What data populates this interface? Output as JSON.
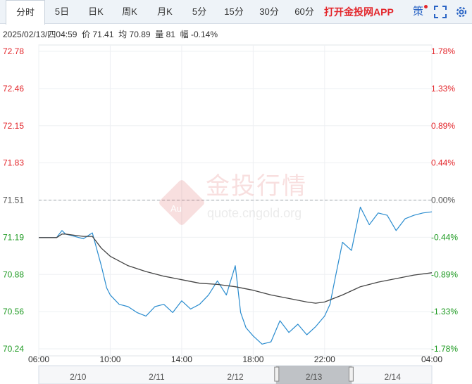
{
  "tabs": [
    {
      "label": "分时",
      "active": true
    },
    {
      "label": "5日"
    },
    {
      "label": "日K"
    },
    {
      "label": "周K"
    },
    {
      "label": "月K"
    },
    {
      "label": "5分"
    },
    {
      "label": "15分"
    },
    {
      "label": "30分"
    },
    {
      "label": "60分"
    }
  ],
  "promo_label": "打开金投网APP",
  "strategy_label": "策",
  "info": {
    "datetime": "2025/02/13/四04:59",
    "price_label": "价",
    "price": "71.41",
    "avg_label": "均",
    "avg": "70.89",
    "volume_label": "量",
    "volume": "81",
    "change_label": "幅",
    "change": "-0.14%"
  },
  "watermark": {
    "name": "金投行情",
    "url": "quote.cngold.org",
    "logo": "Au"
  },
  "colors": {
    "price_line": "#2a8ccf",
    "avg_line": "#444444",
    "up": "#e3262b",
    "down": "#1e9a22",
    "neutral": "#555555"
  },
  "chart_data": {
    "type": "line",
    "ylim": [
      70.24,
      72.78
    ],
    "y_ticks": [
      "72.78",
      "72.46",
      "72.15",
      "71.83",
      "71.51",
      "71.19",
      "70.88",
      "70.56",
      "70.24"
    ],
    "pct_ticks": [
      "1.78%",
      "1.33%",
      "0.89%",
      "0.44%",
      "0.00%",
      "-0.44%",
      "-0.89%",
      "-1.33%",
      "-1.78%"
    ],
    "ref_value": 71.51,
    "x_ticks": [
      "06:00",
      "10:00",
      "14:00",
      "18:00",
      "22:00",
      "04:00"
    ],
    "x_tick_hours": [
      0,
      4,
      8,
      12,
      16,
      22
    ],
    "x_range_hours": [
      0,
      22
    ],
    "series": [
      {
        "key": "price",
        "hours": [
          0,
          0.5,
          1,
          1.3,
          1.5,
          2,
          2.5,
          3,
          3.5,
          3.8,
          4,
          4.5,
          5,
          5.5,
          6,
          6.5,
          7,
          7.5,
          8,
          8.5,
          9,
          9.5,
          10,
          10.5,
          11,
          11.3,
          11.6,
          12,
          12.5,
          13,
          13.5,
          14,
          14.5,
          15,
          15.5,
          16,
          16.3,
          16.6,
          17,
          17.5,
          18,
          18.5,
          19,
          19.5,
          20,
          20.5,
          21,
          21.5,
          22
        ],
        "values": [
          71.19,
          71.19,
          71.19,
          71.25,
          71.22,
          71.2,
          71.18,
          71.23,
          70.95,
          70.76,
          70.7,
          70.62,
          70.6,
          70.55,
          70.52,
          70.6,
          70.62,
          70.55,
          70.65,
          70.58,
          70.62,
          70.7,
          70.82,
          70.7,
          70.95,
          70.55,
          70.42,
          70.35,
          70.28,
          70.3,
          70.48,
          70.38,
          70.45,
          70.36,
          70.43,
          70.52,
          70.62,
          70.85,
          71.15,
          71.08,
          71.45,
          71.3,
          71.4,
          71.38,
          71.25,
          71.35,
          71.38,
          71.4,
          71.41
        ]
      },
      {
        "key": "avg",
        "hours": [
          0,
          0.5,
          1,
          1.3,
          1.5,
          2,
          2.5,
          3,
          3.5,
          4,
          5,
          6,
          7,
          8,
          9,
          10,
          11,
          12,
          13,
          14,
          15,
          15.5,
          16,
          17,
          18,
          19,
          20,
          21,
          22
        ],
        "values": [
          71.19,
          71.19,
          71.19,
          71.22,
          71.22,
          71.21,
          71.2,
          71.2,
          71.1,
          71.03,
          70.95,
          70.9,
          70.86,
          70.83,
          70.8,
          70.79,
          70.77,
          70.74,
          70.7,
          70.67,
          70.64,
          70.63,
          70.64,
          70.7,
          70.77,
          70.81,
          70.84,
          70.87,
          70.89
        ]
      }
    ]
  },
  "navigator": {
    "dates": [
      "2/10",
      "2/11",
      "2/12",
      "2/13",
      "2/14"
    ],
    "selected_index": 3
  }
}
